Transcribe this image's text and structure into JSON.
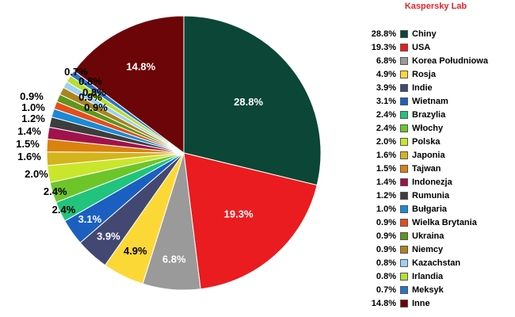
{
  "brand": "Kaspersky Lab",
  "chart_data": {
    "type": "pie",
    "unit": "%",
    "legend_position": "right",
    "slices": [
      {
        "label": "Chiny",
        "value": 28.8,
        "display": "28.8%",
        "color": "#0b4636"
      },
      {
        "label": "USA",
        "value": 19.3,
        "display": "19.3%",
        "color": "#ea1c1f"
      },
      {
        "label": "Korea Południowa",
        "value": 6.8,
        "display": "6.8%",
        "color": "#9a9a9a"
      },
      {
        "label": "Rosja",
        "value": 4.9,
        "display": "4.9%",
        "color": "#fcd837"
      },
      {
        "label": "Indie",
        "value": 3.9,
        "display": "3.9%",
        "color": "#434872"
      },
      {
        "label": "Wietnam",
        "value": 3.1,
        "display": "3.1%",
        "color": "#1b5fc1"
      },
      {
        "label": "Brazylia",
        "value": 2.4,
        "display": "2.4%",
        "color": "#20c47c"
      },
      {
        "label": "Włochy",
        "value": 2.4,
        "display": "2.4%",
        "color": "#6ec52a"
      },
      {
        "label": "Polska",
        "value": 2.0,
        "display": "2.0%",
        "color": "#c9e62c"
      },
      {
        "label": "Japonia",
        "value": 1.6,
        "display": "1.6%",
        "color": "#d4b41c"
      },
      {
        "label": "Tajwan",
        "value": 1.5,
        "display": "1.5%",
        "color": "#d9820e"
      },
      {
        "label": "Indonezja",
        "value": 1.4,
        "display": "1.4%",
        "color": "#a0124c"
      },
      {
        "label": "Rumunia",
        "value": 1.2,
        "display": "1.2%",
        "color": "#3d3d3d"
      },
      {
        "label": "Bułgaria",
        "value": 1.0,
        "display": "1.0%",
        "color": "#1a8ad6"
      },
      {
        "label": "Wielka Brytania",
        "value": 0.9,
        "display": "0.9%",
        "color": "#e34e1a"
      },
      {
        "label": "Ukraina",
        "value": 0.9,
        "display": "0.9%",
        "color": "#5f961b"
      },
      {
        "label": "Niemcy",
        "value": 0.9,
        "display": "0.9%",
        "color": "#a9851c"
      },
      {
        "label": "Kazachstan",
        "value": 0.8,
        "display": "0.8%",
        "color": "#9fd0f3"
      },
      {
        "label": "Irlandia",
        "value": 0.8,
        "display": "0.8%",
        "color": "#b6df2e"
      },
      {
        "label": "Meksyk",
        "value": 0.7,
        "display": "0.7%",
        "color": "#2a73c6"
      },
      {
        "label": "Inne",
        "value": 14.8,
        "display": "14.8%",
        "color": "#6b0508"
      }
    ]
  }
}
